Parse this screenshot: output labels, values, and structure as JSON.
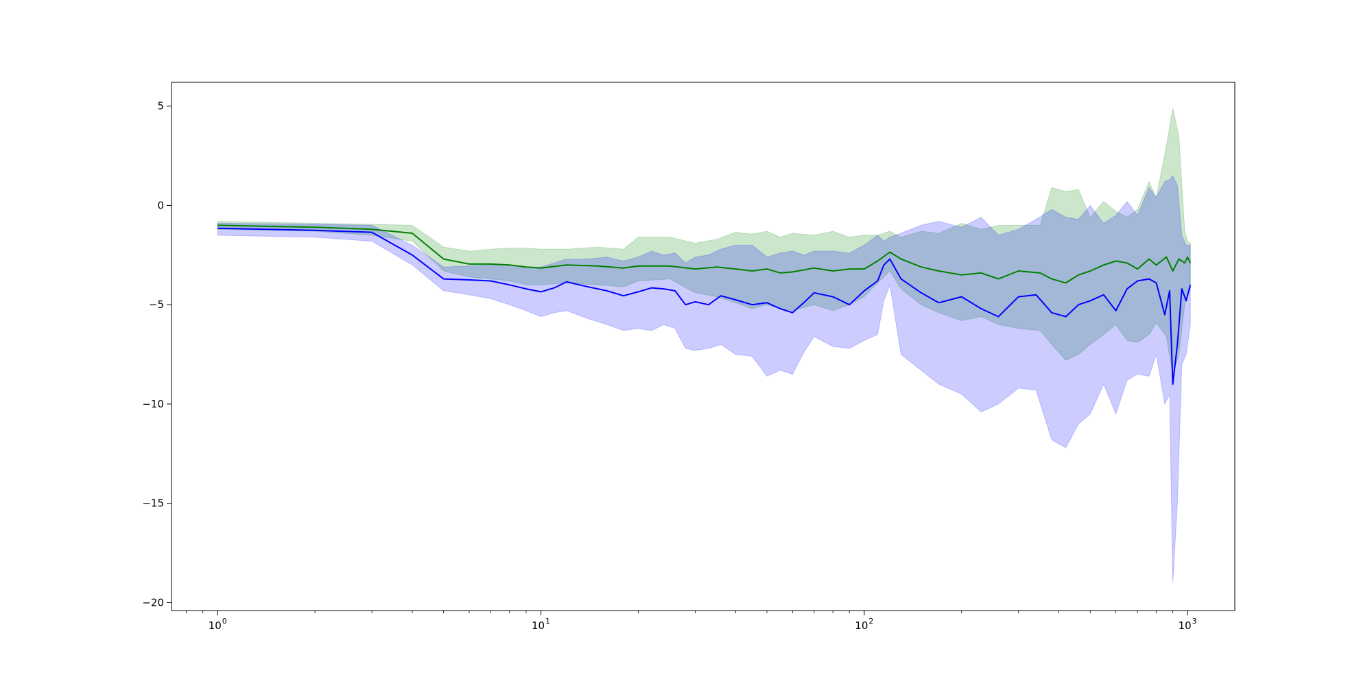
{
  "chart_data": {
    "type": "line",
    "title": "",
    "xlabel": "",
    "ylabel": "",
    "x_scale": "log",
    "xlim": [
      0.72,
      1400
    ],
    "ylim": [
      -20.4,
      6.2
    ],
    "grid": false,
    "legend": "none",
    "x_ticks": [
      {
        "value": 1,
        "base": "10",
        "exp": "0"
      },
      {
        "value": 10,
        "base": "10",
        "exp": "1"
      },
      {
        "value": 100,
        "base": "10",
        "exp": "2"
      },
      {
        "value": 1000,
        "base": "10",
        "exp": "3"
      }
    ],
    "y_ticks": [
      {
        "value": 5,
        "label": "5"
      },
      {
        "value": 0,
        "label": "0"
      },
      {
        "value": -5,
        "label": "−5"
      },
      {
        "value": -10,
        "label": "−10"
      },
      {
        "value": -15,
        "label": "−15"
      },
      {
        "value": -20,
        "label": "−20"
      }
    ],
    "series": [
      {
        "color": "#008000",
        "band_color": "#008000",
        "band_opacity": 0.2,
        "points": [
          [
            1,
            -1.0,
            -1.2,
            -0.8
          ],
          [
            2,
            -1.1,
            -1.3,
            -0.9
          ],
          [
            3,
            -1.2,
            -1.5,
            -0.95
          ],
          [
            4,
            -1.4,
            -1.8,
            -1.0
          ],
          [
            5,
            -2.7,
            -3.3,
            -2.1
          ],
          [
            6,
            -2.95,
            -3.6,
            -2.3
          ],
          [
            7,
            -2.95,
            -3.7,
            -2.2
          ],
          [
            8,
            -3.0,
            -3.8,
            -2.15
          ],
          [
            9,
            -3.1,
            -4.0,
            -2.15
          ],
          [
            10,
            -3.15,
            -4.0,
            -2.2
          ],
          [
            12,
            -3.0,
            -3.9,
            -2.2
          ],
          [
            15,
            -3.05,
            -4.0,
            -2.1
          ],
          [
            18,
            -3.15,
            -4.1,
            -2.2
          ],
          [
            20,
            -3.05,
            -3.8,
            -1.6
          ],
          [
            25,
            -3.05,
            -3.7,
            -1.6
          ],
          [
            30,
            -3.2,
            -4.4,
            -1.9
          ],
          [
            35,
            -3.1,
            -4.6,
            -1.7
          ],
          [
            40,
            -3.2,
            -4.9,
            -1.35
          ],
          [
            45,
            -3.3,
            -5.2,
            -1.45
          ],
          [
            50,
            -3.2,
            -5.0,
            -1.3
          ],
          [
            55,
            -3.4,
            -5.2,
            -1.6
          ],
          [
            60,
            -3.35,
            -5.3,
            -1.4
          ],
          [
            70,
            -3.15,
            -5.0,
            -1.5
          ],
          [
            80,
            -3.3,
            -5.3,
            -1.3
          ],
          [
            90,
            -3.2,
            -5.0,
            -1.6
          ],
          [
            100,
            -3.2,
            -4.6,
            -1.5
          ],
          [
            110,
            -2.8,
            -3.9,
            -1.5
          ],
          [
            120,
            -2.35,
            -3.3,
            -1.3
          ],
          [
            130,
            -2.7,
            -4.2,
            -1.6
          ],
          [
            150,
            -3.1,
            -5.0,
            -1.3
          ],
          [
            170,
            -3.3,
            -5.4,
            -1.4
          ],
          [
            200,
            -3.5,
            -5.8,
            -0.9
          ],
          [
            230,
            -3.4,
            -5.6,
            -1.2
          ],
          [
            260,
            -3.7,
            -6.0,
            -1.0
          ],
          [
            300,
            -3.3,
            -6.2,
            -1.0
          ],
          [
            350,
            -3.4,
            -6.3,
            -1.0
          ],
          [
            380,
            -3.7,
            -7.0,
            0.9
          ],
          [
            420,
            -3.9,
            -7.8,
            0.7
          ],
          [
            460,
            -3.5,
            -7.5,
            0.8
          ],
          [
            500,
            -3.3,
            -7.0,
            -0.6
          ],
          [
            550,
            -3.0,
            -6.5,
            0.2
          ],
          [
            600,
            -2.8,
            -6.0,
            -0.3
          ],
          [
            650,
            -2.9,
            -6.8,
            -0.6
          ],
          [
            700,
            -3.2,
            -6.9,
            -0.2
          ],
          [
            760,
            -2.7,
            -6.5,
            1.2
          ],
          [
            800,
            -3.0,
            -5.9,
            0.4
          ],
          [
            860,
            -2.6,
            -6.6,
            3.0
          ],
          [
            900,
            -3.3,
            -8.5,
            4.9
          ],
          [
            940,
            -2.7,
            -7.5,
            3.5
          ],
          [
            980,
            -2.9,
            -5.0,
            -1.3
          ],
          [
            1000,
            -2.6,
            -4.5,
            -1.8
          ],
          [
            1020,
            -2.9,
            -4.2,
            -1.9
          ]
        ]
      },
      {
        "color": "#0000ff",
        "band_color": "#0000ff",
        "band_opacity": 0.2,
        "points": [
          [
            1,
            -1.15,
            -1.5,
            -0.9
          ],
          [
            2,
            -1.25,
            -1.6,
            -0.95
          ],
          [
            3,
            -1.35,
            -1.8,
            -1.0
          ],
          [
            4,
            -2.5,
            -3.0,
            -2.0
          ],
          [
            5,
            -3.7,
            -4.3,
            -3.1
          ],
          [
            6,
            -3.75,
            -4.5,
            -3.05
          ],
          [
            7,
            -3.8,
            -4.7,
            -3.0
          ],
          [
            8,
            -4.0,
            -5.0,
            -3.0
          ],
          [
            9,
            -4.2,
            -5.3,
            -3.1
          ],
          [
            10,
            -4.35,
            -5.6,
            -3.1
          ],
          [
            11,
            -4.15,
            -5.4,
            -2.9
          ],
          [
            12,
            -3.85,
            -5.3,
            -2.7
          ],
          [
            14,
            -4.1,
            -5.7,
            -2.7
          ],
          [
            16,
            -4.3,
            -6.0,
            -2.6
          ],
          [
            18,
            -4.55,
            -6.3,
            -2.8
          ],
          [
            20,
            -4.35,
            -6.2,
            -2.6
          ],
          [
            22,
            -4.15,
            -6.3,
            -2.3
          ],
          [
            24,
            -4.2,
            -6.0,
            -2.5
          ],
          [
            26,
            -4.3,
            -6.2,
            -2.4
          ],
          [
            28,
            -5.0,
            -7.2,
            -2.9
          ],
          [
            30,
            -4.85,
            -7.3,
            -2.6
          ],
          [
            33,
            -5.0,
            -7.2,
            -2.5
          ],
          [
            36,
            -4.55,
            -7.0,
            -2.2
          ],
          [
            40,
            -4.75,
            -7.5,
            -2.0
          ],
          [
            45,
            -5.0,
            -7.6,
            -2.0
          ],
          [
            50,
            -4.9,
            -8.6,
            -2.6
          ],
          [
            55,
            -5.2,
            -8.3,
            -2.4
          ],
          [
            60,
            -5.4,
            -8.5,
            -2.3
          ],
          [
            65,
            -4.9,
            -7.4,
            -2.5
          ],
          [
            70,
            -4.4,
            -6.6,
            -2.3
          ],
          [
            80,
            -4.6,
            -7.1,
            -2.3
          ],
          [
            90,
            -5.0,
            -7.2,
            -2.4
          ],
          [
            100,
            -4.3,
            -6.8,
            -2.0
          ],
          [
            110,
            -3.8,
            -6.5,
            -1.5
          ],
          [
            115,
            -3.0,
            -4.8,
            -1.8
          ],
          [
            120,
            -2.7,
            -4.0,
            -1.6
          ],
          [
            130,
            -3.7,
            -7.5,
            -1.4
          ],
          [
            150,
            -4.4,
            -8.3,
            -1.0
          ],
          [
            170,
            -4.9,
            -9.0,
            -0.8
          ],
          [
            200,
            -4.6,
            -9.5,
            -1.1
          ],
          [
            230,
            -5.2,
            -10.4,
            -0.6
          ],
          [
            260,
            -5.6,
            -10.0,
            -1.5
          ],
          [
            300,
            -4.6,
            -9.2,
            -1.2
          ],
          [
            340,
            -4.5,
            -9.3,
            -0.7
          ],
          [
            380,
            -5.4,
            -11.8,
            -0.2
          ],
          [
            420,
            -5.6,
            -12.2,
            -0.6
          ],
          [
            460,
            -5.0,
            -11.0,
            -0.7
          ],
          [
            500,
            -4.8,
            -10.5,
            0.0
          ],
          [
            550,
            -4.5,
            -9.0,
            -0.9
          ],
          [
            600,
            -5.3,
            -10.5,
            -0.5
          ],
          [
            650,
            -4.2,
            -8.8,
            0.2
          ],
          [
            700,
            -3.8,
            -8.5,
            -0.5
          ],
          [
            760,
            -3.7,
            -8.6,
            0.9
          ],
          [
            800,
            -3.9,
            -7.5,
            0.4
          ],
          [
            850,
            -5.5,
            -10.0,
            1.2
          ],
          [
            880,
            -4.3,
            -9.5,
            1.3
          ],
          [
            900,
            -9.0,
            -19.0,
            1.5
          ],
          [
            930,
            -7.0,
            -15.0,
            1.0
          ],
          [
            960,
            -4.2,
            -8.0,
            -1.5
          ],
          [
            990,
            -4.8,
            -7.5,
            -2.0
          ],
          [
            1020,
            -4.0,
            -6.0,
            -2.0
          ]
        ]
      }
    ]
  }
}
